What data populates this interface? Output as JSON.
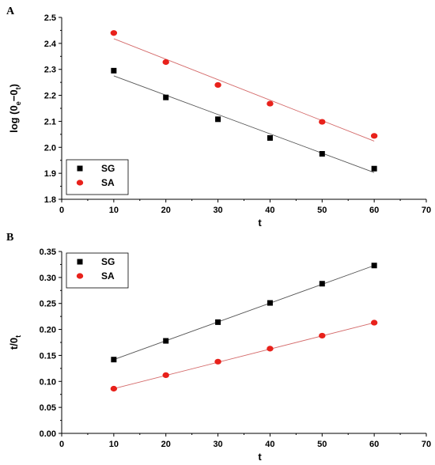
{
  "chart_data": [
    {
      "type": "scatter",
      "panel_label": "A",
      "xlabel": "t",
      "ylabel": {
        "main": "log (0",
        "sub1": "e",
        "mid": "−0",
        "sub2": "t",
        "end": ")"
      },
      "xlim": [
        0,
        70
      ],
      "ylim": [
        1.8,
        2.5
      ],
      "x_ticks": [
        "0",
        "10",
        "20",
        "30",
        "40",
        "50",
        "60",
        "70"
      ],
      "y_ticks": [
        "1.8",
        "1.9",
        "2.0",
        "2.1",
        "2.2",
        "2.3",
        "2.4",
        "2.5"
      ],
      "legend_position": "bottom-left",
      "series": [
        {
          "name": "SG",
          "marker": "square",
          "color": "#000000",
          "line_color": "#555555",
          "x": [
            10,
            20,
            30,
            40,
            50,
            60
          ],
          "y": [
            2.295,
            2.192,
            2.108,
            2.036,
            1.975,
            1.918
          ],
          "fit": [
            [
              10,
              2.275
            ],
            [
              60,
              1.903
            ]
          ]
        },
        {
          "name": "SA",
          "marker": "circle",
          "color": "#e8211b",
          "line_color": "#d46a6a",
          "x": [
            10,
            20,
            30,
            40,
            50,
            60
          ],
          "y": [
            2.44,
            2.328,
            2.24,
            2.168,
            2.098,
            2.044
          ],
          "fit": [
            [
              10,
              2.418
            ],
            [
              60,
              2.024
            ]
          ]
        }
      ]
    },
    {
      "type": "scatter",
      "panel_label": "B",
      "xlabel": "t",
      "ylabel": {
        "main": "t/0",
        "sub1": "t"
      },
      "xlim": [
        0,
        70
      ],
      "ylim": [
        0,
        0.35
      ],
      "x_ticks": [
        "0",
        "10",
        "20",
        "30",
        "40",
        "50",
        "60",
        "70"
      ],
      "y_ticks": [
        "0.00",
        "0.05",
        "0.10",
        "0.15",
        "0.20",
        "0.25",
        "0.30",
        "0.35"
      ],
      "legend_position": "top-left",
      "series": [
        {
          "name": "SG",
          "marker": "square",
          "color": "#000000",
          "line_color": "#555555",
          "x": [
            10,
            20,
            30,
            40,
            50,
            60
          ],
          "y": [
            0.142,
            0.178,
            0.214,
            0.251,
            0.288,
            0.323
          ],
          "fit": [
            [
              10,
              0.142
            ],
            [
              60,
              0.323
            ]
          ]
        },
        {
          "name": "SA",
          "marker": "circle",
          "color": "#e8211b",
          "line_color": "#d46a6a",
          "x": [
            10,
            20,
            30,
            40,
            50,
            60
          ],
          "y": [
            0.086,
            0.112,
            0.138,
            0.163,
            0.188,
            0.213
          ],
          "fit": [
            [
              10,
              0.086
            ],
            [
              60,
              0.213
            ]
          ]
        }
      ]
    }
  ]
}
